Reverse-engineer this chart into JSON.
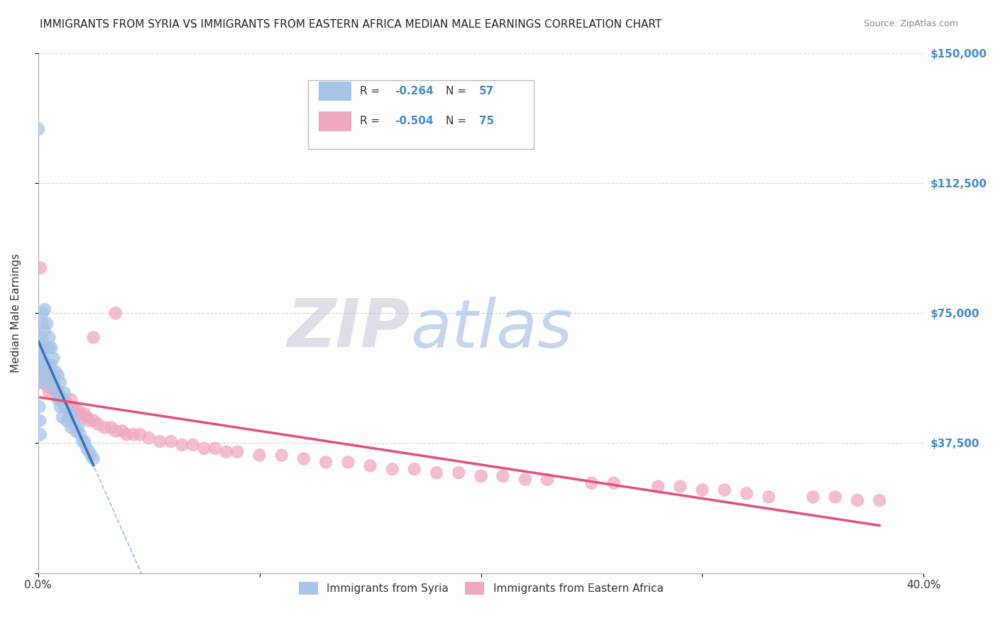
{
  "title": "IMMIGRANTS FROM SYRIA VS IMMIGRANTS FROM EASTERN AFRICA MEDIAN MALE EARNINGS CORRELATION CHART",
  "source": "Source: ZipAtlas.com",
  "ylabel": "Median Male Earnings",
  "y_ticks": [
    0,
    37500,
    75000,
    112500,
    150000
  ],
  "y_tick_labels": [
    "",
    "$37,500",
    "$75,000",
    "$112,500",
    "$150,000"
  ],
  "x_min": 0.0,
  "x_max": 0.4,
  "y_min": 0,
  "y_max": 150000,
  "series": [
    {
      "name": "Immigrants from Syria",
      "R": -0.264,
      "N": 57,
      "color": "#a8c4e8",
      "line_color": "#3a72b8",
      "x": [
        0.0002,
        0.0004,
        0.0006,
        0.0008,
        0.001,
        0.0012,
        0.0014,
        0.0015,
        0.0015,
        0.002,
        0.002,
        0.002,
        0.002,
        0.003,
        0.003,
        0.003,
        0.004,
        0.004,
        0.004,
        0.005,
        0.005,
        0.005,
        0.005,
        0.006,
        0.006,
        0.006,
        0.007,
        0.007,
        0.008,
        0.008,
        0.009,
        0.009,
        0.009,
        0.01,
        0.01,
        0.01,
        0.011,
        0.012,
        0.012,
        0.013,
        0.014,
        0.015,
        0.015,
        0.016,
        0.017,
        0.018,
        0.019,
        0.02,
        0.021,
        0.022,
        0.023,
        0.024,
        0.025,
        0.0004,
        0.0006,
        0.0008,
        0.001
      ],
      "y": [
        128000,
        68000,
        66000,
        62000,
        61000,
        59000,
        58000,
        57000,
        57000,
        75000,
        72000,
        68000,
        62000,
        76000,
        70000,
        65000,
        72000,
        65000,
        58000,
        68000,
        65000,
        60000,
        55000,
        65000,
        60000,
        55000,
        62000,
        55000,
        58000,
        53000,
        57000,
        52000,
        50000,
        48000,
        55000,
        50000,
        45000,
        48000,
        52000,
        44000,
        45000,
        46000,
        42000,
        43000,
        41000,
        42000,
        40000,
        38000,
        38000,
        36000,
        35000,
        34000,
        33000,
        55000,
        48000,
        44000,
        40000
      ]
    },
    {
      "name": "Immigrants from Eastern Africa",
      "R": -0.504,
      "N": 75,
      "color": "#f0a8c0",
      "line_color": "#e0507a",
      "x": [
        0.001,
        0.001,
        0.002,
        0.002,
        0.003,
        0.004,
        0.004,
        0.005,
        0.005,
        0.006,
        0.006,
        0.007,
        0.008,
        0.009,
        0.01,
        0.011,
        0.012,
        0.013,
        0.013,
        0.014,
        0.015,
        0.016,
        0.017,
        0.018,
        0.019,
        0.02,
        0.021,
        0.022,
        0.023,
        0.025,
        0.027,
        0.03,
        0.033,
        0.035,
        0.038,
        0.04,
        0.043,
        0.046,
        0.05,
        0.055,
        0.06,
        0.065,
        0.07,
        0.075,
        0.08,
        0.085,
        0.09,
        0.1,
        0.11,
        0.12,
        0.13,
        0.14,
        0.15,
        0.16,
        0.17,
        0.18,
        0.19,
        0.2,
        0.21,
        0.22,
        0.23,
        0.25,
        0.26,
        0.28,
        0.29,
        0.3,
        0.31,
        0.32,
        0.33,
        0.35,
        0.36,
        0.37,
        0.38,
        0.025,
        0.035
      ],
      "y": [
        88000,
        60000,
        65000,
        55000,
        58000,
        60000,
        54000,
        57000,
        52000,
        57000,
        53000,
        55000,
        53000,
        52000,
        51000,
        50000,
        50000,
        49000,
        48000,
        48000,
        50000,
        47000,
        47000,
        47000,
        46000,
        45000,
        46000,
        45000,
        44000,
        44000,
        43000,
        42000,
        42000,
        41000,
        41000,
        40000,
        40000,
        40000,
        39000,
        38000,
        38000,
        37000,
        37000,
        36000,
        36000,
        35000,
        35000,
        34000,
        34000,
        33000,
        32000,
        32000,
        31000,
        30000,
        30000,
        29000,
        29000,
        28000,
        28000,
        27000,
        27000,
        26000,
        26000,
        25000,
        25000,
        24000,
        24000,
        23000,
        22000,
        22000,
        22000,
        21000,
        21000,
        68000,
        75000
      ]
    }
  ],
  "background_color": "#ffffff",
  "grid_color": "#cccccc",
  "title_fontsize": 11,
  "source_fontsize": 9,
  "axis_label_color": "#4488cc",
  "watermark_zip_color": "#c8c8d8",
  "watermark_atlas_color": "#a0b8e0",
  "watermark_alpha": 0.6
}
